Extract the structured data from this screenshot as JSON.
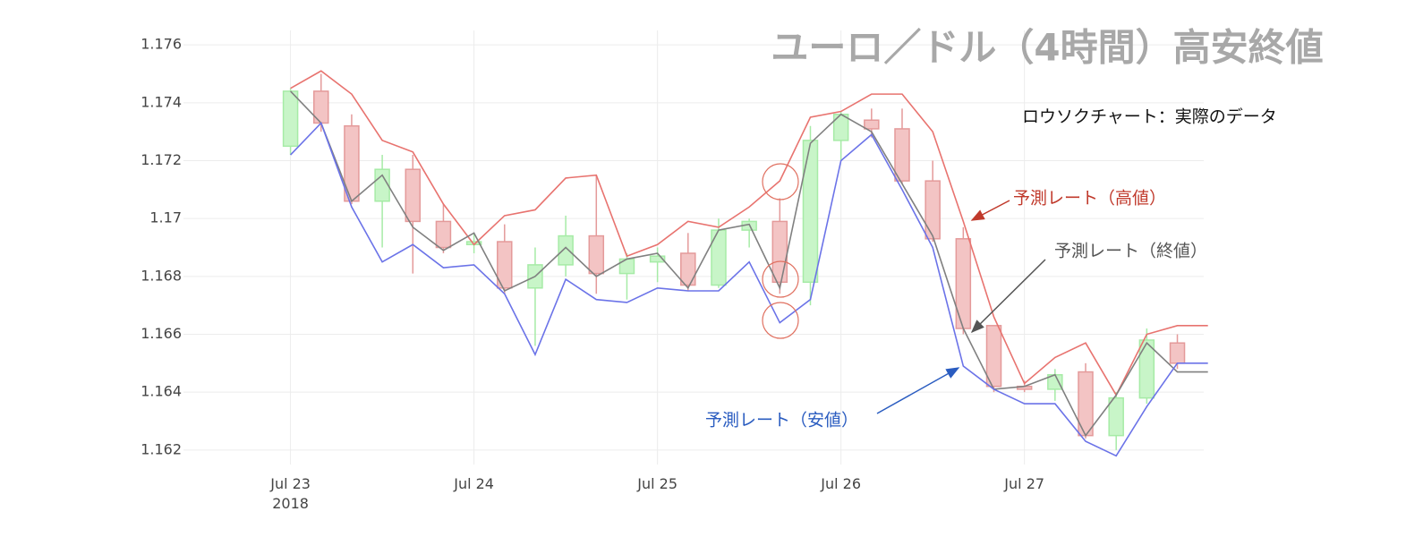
{
  "chart_data": {
    "type": "candlestick",
    "title": "ユーロ／ドル（4時間）高安終値",
    "subtitle": "ロウソクチャート：実際のデータ",
    "categories": [
      null,
      null,
      null,
      "Jul 23\n2018",
      null,
      null,
      null,
      null,
      null,
      "Jul 24",
      null,
      null,
      null,
      null,
      null,
      "Jul 25",
      null,
      null,
      null,
      null,
      null,
      "Jul 26",
      null,
      null,
      null,
      null,
      null,
      "Jul 27",
      null,
      null,
      null,
      null,
      null,
      null
    ],
    "open": [
      null,
      null,
      null,
      1.1725,
      1.1744,
      1.1732,
      1.1706,
      1.1717,
      1.1699,
      1.1691,
      1.1692,
      1.1676,
      1.1684,
      1.1694,
      1.1681,
      1.1685,
      1.1688,
      1.1677,
      1.1696,
      1.1699,
      1.1678,
      1.1727,
      1.1734,
      1.1731,
      1.1713,
      1.1693,
      1.1663,
      1.1642,
      1.1641,
      1.1647,
      1.1625,
      1.1638,
      1.1657,
      null
    ],
    "high": [
      null,
      null,
      null,
      1.1745,
      1.175,
      1.1736,
      1.1722,
      1.1722,
      1.1705,
      1.1695,
      1.1698,
      1.169,
      1.1701,
      1.1715,
      1.1688,
      1.169,
      1.1695,
      1.17,
      1.17,
      1.1707,
      1.1732,
      1.1737,
      1.1738,
      1.1738,
      1.172,
      1.1697,
      1.1663,
      1.1644,
      1.1648,
      1.165,
      1.164,
      1.1662,
      1.166,
      null
    ],
    "low": [
      null,
      null,
      null,
      1.1722,
      1.173,
      1.1705,
      1.169,
      1.1681,
      1.1688,
      1.1688,
      1.1674,
      1.1656,
      1.168,
      1.1674,
      1.1672,
      1.1678,
      1.1675,
      1.1676,
      1.169,
      1.1674,
      1.167,
      1.172,
      1.1728,
      1.1712,
      1.1692,
      1.166,
      1.164,
      1.164,
      1.1637,
      1.1624,
      1.162,
      1.1636,
      1.1648,
      null
    ],
    "close": [
      null,
      null,
      null,
      1.1744,
      1.1733,
      1.1706,
      1.1717,
      1.1699,
      1.169,
      1.1692,
      1.1676,
      1.1684,
      1.1694,
      1.1681,
      1.1686,
      1.1687,
      1.1677,
      1.1696,
      1.1699,
      1.1678,
      1.1727,
      1.1736,
      1.1731,
      1.1713,
      1.1693,
      1.1662,
      1.1642,
      1.1641,
      1.1646,
      1.1625,
      1.1638,
      1.1658,
      1.165,
      null
    ],
    "up_color": "#c8f5c8",
    "down_color": "#f3c4c4",
    "series": [
      {
        "name": "予測レート（高値）",
        "color": "#e8736f",
        "label_color": "#c0392b",
        "values": [
          null,
          null,
          null,
          1.1745,
          1.1751,
          1.1743,
          1.1727,
          1.1723,
          1.1705,
          1.1691,
          1.1701,
          1.1703,
          1.1714,
          1.1715,
          1.1687,
          1.1691,
          1.1699,
          1.1697,
          1.1704,
          1.1713,
          1.1735,
          1.1737,
          1.1743,
          1.1743,
          1.173,
          1.1699,
          1.1666,
          1.1643,
          1.1652,
          1.1657,
          1.1639,
          1.166,
          1.1663,
          1.1663
        ]
      },
      {
        "name": "予測レート（終値）",
        "color": "#808080",
        "label_color": "#555555",
        "values": [
          null,
          null,
          null,
          1.1744,
          1.1733,
          1.1706,
          1.1715,
          1.1697,
          1.1689,
          1.1695,
          1.1675,
          1.168,
          1.169,
          1.168,
          1.1686,
          1.1688,
          1.1676,
          1.1696,
          1.1698,
          1.1676,
          1.1726,
          1.1736,
          1.173,
          1.1712,
          1.1694,
          1.1662,
          1.1641,
          1.1642,
          1.1646,
          1.1625,
          1.1639,
          1.1657,
          1.1647,
          1.1647
        ]
      },
      {
        "name": "予測レート（安値）",
        "color": "#6b73e8",
        "label_color": "#2a5cc0",
        "values": [
          null,
          null,
          null,
          1.1722,
          1.1733,
          1.1704,
          1.1685,
          1.1691,
          1.1683,
          1.1684,
          1.1674,
          1.1653,
          1.1679,
          1.1672,
          1.1671,
          1.1676,
          1.1675,
          1.1675,
          1.1685,
          1.1664,
          1.1672,
          1.172,
          1.1729,
          1.171,
          1.169,
          1.1649,
          1.1641,
          1.1636,
          1.1636,
          1.1623,
          1.1618,
          1.1635,
          1.165,
          1.165
        ]
      }
    ],
    "ylim": [
      1.1615,
      1.1765
    ],
    "yticks": [
      1.162,
      1.164,
      1.166,
      1.168,
      1.17,
      1.172,
      1.174,
      1.176
    ],
    "grid": true
  }
}
